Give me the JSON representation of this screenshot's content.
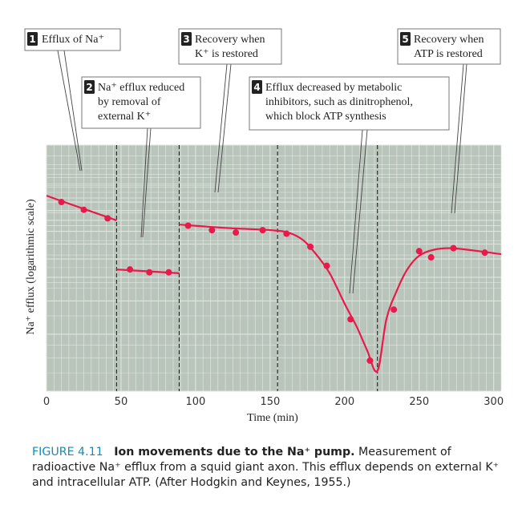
{
  "colors": {
    "plot_background": "#b9c4ba",
    "grid": "#dfe6e0",
    "data": "#e8194b",
    "caption_accent": "#1a8ab5"
  },
  "chart_data": {
    "type": "line",
    "x_axis": {
      "label": "Time (min)",
      "range": [
        0,
        305
      ],
      "ticks": [
        0,
        50,
        100,
        150,
        200,
        250,
        300
      ]
    },
    "y_axis": {
      "label": "Na⁺ efflux (logarithmic scale)",
      "scale": "log",
      "tick_labels": "none"
    },
    "grid": true,
    "condition_boundaries_min": [
      47,
      89,
      155,
      222
    ],
    "series": [
      {
        "segment": 1,
        "points": [
          [
            10,
            100
          ],
          [
            25,
            91
          ],
          [
            41,
            82
          ]
        ],
        "curve": [
          [
            0,
            108
          ],
          [
            25,
            92
          ],
          [
            47,
            80
          ]
        ]
      },
      {
        "segment": 2,
        "points": [
          [
            56,
            44
          ],
          [
            69,
            42.5
          ],
          [
            82,
            42.5
          ]
        ],
        "curve": [
          [
            47,
            44
          ],
          [
            68,
            43
          ],
          [
            89,
            42
          ]
        ]
      },
      {
        "segment": 3,
        "points": [
          [
            95,
            75
          ],
          [
            111,
            71
          ],
          [
            127,
            69
          ],
          [
            145,
            71
          ],
          [
            161,
            68
          ],
          [
            177,
            58
          ],
          [
            188,
            46
          ],
          [
            204,
            24
          ],
          [
            217,
            14.5
          ],
          [
            233,
            27
          ],
          [
            250,
            55
          ],
          [
            258,
            51
          ],
          [
            273,
            57
          ],
          [
            294,
            54
          ]
        ],
        "curve": [
          [
            89,
            76
          ],
          [
            120,
            73
          ],
          [
            150,
            71
          ],
          [
            162,
            69
          ],
          [
            172,
            63
          ],
          [
            180,
            54
          ],
          [
            190,
            42
          ],
          [
            200,
            29
          ],
          [
            208,
            22
          ],
          [
            215,
            16.5
          ],
          [
            222,
            12.8
          ],
          [
            228,
            24
          ],
          [
            235,
            34
          ],
          [
            242,
            44
          ],
          [
            250,
            52
          ],
          [
            260,
            56
          ],
          [
            272,
            57
          ],
          [
            290,
            55
          ],
          [
            305,
            53
          ]
        ]
      }
    ],
    "annotations": [
      {
        "number": "1",
        "text": [
          "Efflux of Na⁺"
        ]
      },
      {
        "number": "2",
        "text": [
          "Na⁺ efflux reduced",
          "by removal of",
          "external K⁺"
        ]
      },
      {
        "number": "3",
        "text": [
          "Recovery when",
          "K⁺ is restored"
        ]
      },
      {
        "number": "4",
        "text": [
          "Efflux decreased by metabolic",
          "inhibitors, such as dinitrophenol,",
          "which block ATP synthesis"
        ]
      },
      {
        "number": "5",
        "text": [
          "Recovery when",
          "ATP is restored"
        ]
      }
    ]
  },
  "caption": {
    "number": "FIGURE 4.11",
    "title": "Ion movements due to the Na⁺ pump.",
    "text": "Measurement of radioactive Na⁺ efflux from a squid giant axon. This efflux depends on external K⁺ and intracellular ATP. (After Hodgkin and Keynes, 1955.)"
  }
}
